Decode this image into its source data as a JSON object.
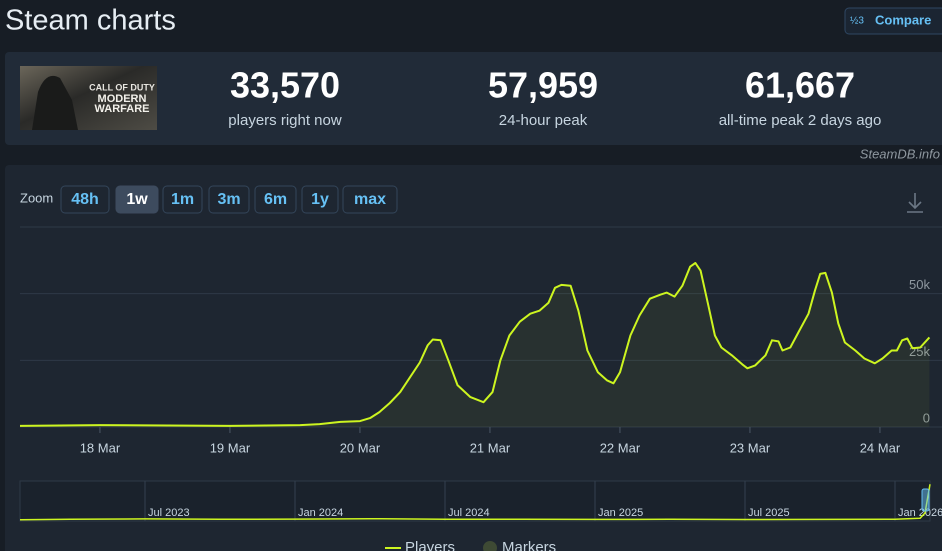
{
  "header": {
    "title": "Steam charts",
    "compare_icon": "½3",
    "compare": "Compare"
  },
  "game": {
    "logo": [
      "CALL OF DUTY",
      "MODERN",
      "WARFARE"
    ]
  },
  "stats": [
    {
      "value": "33,570",
      "label": "players right now"
    },
    {
      "value": "57,959",
      "label": "24-hour peak"
    },
    {
      "value": "61,667",
      "label": "all-time peak 2 days ago"
    }
  ],
  "source": "SteamDB.info",
  "zoom": {
    "label": "Zoom",
    "options": [
      "48h",
      "1w",
      "1m",
      "3m",
      "6m",
      "1y",
      "max"
    ],
    "active": 1
  },
  "chart_data": [
    {
      "type": "line",
      "x": [
        -0.615,
        0,
        1.0,
        1.54,
        1.69,
        1.85,
        2.0,
        2.08,
        2.15,
        2.23,
        2.31,
        2.38,
        2.46,
        2.52,
        2.56,
        2.62,
        2.68,
        2.75,
        2.85,
        2.95,
        3.02,
        3.08,
        3.15,
        3.23,
        3.31,
        3.38,
        3.45,
        3.5,
        3.55,
        3.62,
        3.68,
        3.75,
        3.83,
        3.9,
        3.95,
        4.0,
        4.08,
        4.15,
        4.23,
        4.31,
        4.36,
        4.42,
        4.48,
        4.54,
        4.58,
        4.62,
        4.68,
        4.73,
        4.78,
        4.86,
        4.94,
        4.98,
        5.04,
        5.12,
        5.17,
        5.22,
        5.25,
        5.31,
        5.38,
        5.45,
        5.5,
        5.54,
        5.58,
        5.63,
        5.68,
        5.73,
        5.81,
        5.88,
        5.96,
        6.02,
        6.09,
        6.13,
        6.17,
        6.21,
        6.25,
        6.31,
        6.38
      ],
      "series": [
        {
          "color": "#cdf520",
          "values": [
            400,
            700,
            400,
            700,
            1100,
            1900,
            2200,
            3400,
            5600,
            9000,
            13100,
            18300,
            24200,
            30600,
            32800,
            32500,
            25000,
            15700,
            11200,
            9300,
            13100,
            25000,
            34300,
            39500,
            42500,
            43600,
            46600,
            52200,
            53300,
            53000,
            43600,
            28700,
            20500,
            17500,
            16400,
            20500,
            34300,
            41800,
            48100,
            49600,
            50400,
            48900,
            53000,
            60100,
            61500,
            58600,
            45500,
            34300,
            29800,
            26900,
            23500,
            22000,
            23100,
            26900,
            32500,
            32100,
            28700,
            29800,
            36200,
            42500,
            51100,
            57400,
            57800,
            50400,
            38800,
            31700,
            28700,
            25700,
            23900,
            25700,
            28700,
            28700,
            32500,
            33200,
            29500,
            29800,
            33600
          ]
        }
      ],
      "xlim": [
        -0.615,
        6.385
      ],
      "xticks": [
        {
          "value": 0,
          "label": "18 Mar"
        },
        {
          "value": 1,
          "label": "19 Mar"
        },
        {
          "value": 2,
          "label": "20 Mar"
        },
        {
          "value": 3,
          "label": "21 Mar"
        },
        {
          "value": 4,
          "label": "22 Mar"
        },
        {
          "value": 5,
          "label": "23 Mar"
        },
        {
          "value": 6,
          "label": "24 Mar"
        }
      ],
      "ylim": [
        0,
        75000
      ],
      "yticks": [
        0,
        {
          "value": 25000,
          "label": "25k"
        },
        {
          "value": 50000,
          "label": "50k"
        }
      ],
      "grid": true,
      "legend": [
        {
          "name": "Players",
          "color": "#cdf520",
          "marker": "line"
        },
        {
          "name": "Markers",
          "color": "#3e4a34",
          "marker": "dot"
        }
      ]
    },
    {
      "type": "line",
      "x": [
        -5,
        -3,
        0,
        3,
        6,
        9,
        12,
        15,
        18,
        21,
        24,
        27,
        30,
        31.0,
        31.2,
        31.4
      ],
      "series": [
        {
          "color": "#cdf520",
          "values": [
            2000,
            2600,
            3200,
            2600,
            2900,
            3500,
            2600,
            2500,
            2400,
            2600,
            2300,
            2400,
            2500,
            4000,
            12000,
            55000
          ]
        }
      ],
      "xlim": [
        -5,
        31.4
      ],
      "xticks": [
        {
          "value": 0,
          "label": "Jul 2023"
        },
        {
          "value": 6,
          "label": "Jan 2024"
        },
        {
          "value": 12,
          "label": "Jul 2024"
        },
        {
          "value": 18,
          "label": "Jan 2025"
        },
        {
          "value": 24,
          "label": "Jul 2025"
        },
        {
          "value": 30,
          "label": "Jan 2026"
        }
      ],
      "ylim": [
        0,
        60000
      ],
      "grid": true
    }
  ]
}
